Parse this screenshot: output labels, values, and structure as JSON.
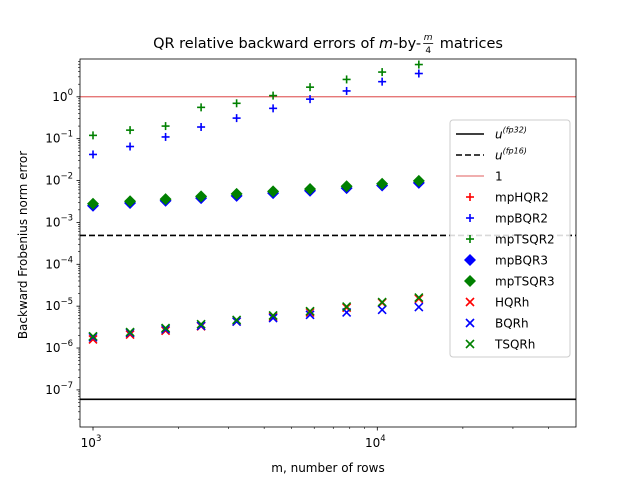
{
  "chart_data": {
    "type": "scatter",
    "title": {
      "prefix": "QR relative backward errors of ",
      "var_m": "m",
      "dash": "-by-",
      "frac_num": "m",
      "frac_den": "4",
      "suffix": " matrices"
    },
    "xlabel": "m, number of rows",
    "ylabel": "Backward Frobenius norm error",
    "xscale": "log",
    "yscale": "log",
    "xlim": [
      900,
      50000
    ],
    "ylim": [
      1.3e-08,
      8
    ],
    "xticks": [
      {
        "value": 1000,
        "base": "10",
        "exp": "3"
      },
      {
        "value": 10000,
        "base": "10",
        "exp": "4"
      }
    ],
    "yticks": [
      {
        "value": 1e-07,
        "base": "10",
        "exp": "−7"
      },
      {
        "value": 1e-06,
        "base": "10",
        "exp": "−6"
      },
      {
        "value": 1e-05,
        "base": "10",
        "exp": "−5"
      },
      {
        "value": 0.0001,
        "base": "10",
        "exp": "−4"
      },
      {
        "value": 0.001,
        "base": "10",
        "exp": "−3"
      },
      {
        "value": 0.01,
        "base": "10",
        "exp": "−2"
      },
      {
        "value": 0.1,
        "base": "10",
        "exp": "−1"
      },
      {
        "value": 1,
        "base": "10",
        "exp": "0"
      }
    ],
    "grid": false,
    "legend_position": "right",
    "x": [
      1000,
      1350,
      1800,
      2400,
      3200,
      4300,
      5800,
      7800,
      10400,
      14000
    ],
    "hlines": [
      {
        "name": "u(fp32)",
        "label_base": "u",
        "label_sup": "(fp32)",
        "value": 5.96e-08,
        "color": "#000000",
        "style": "solid"
      },
      {
        "name": "u(fp16)",
        "label_base": "u",
        "label_sup": "(fp16)",
        "value": 0.000488,
        "color": "#000000",
        "style": "dashed"
      },
      {
        "name": "1",
        "label_base": "1",
        "label_sup": "",
        "value": 1,
        "color": "#d62728",
        "style": "thin"
      }
    ],
    "series": [
      {
        "name": "mpHQR2",
        "marker": "plus",
        "color": "#ff0000",
        "values": []
      },
      {
        "name": "mpBQR2",
        "marker": "plus",
        "color": "#0000ff",
        "values": [
          0.042,
          0.065,
          0.11,
          0.19,
          0.31,
          0.53,
          0.88,
          1.38,
          2.3,
          3.6
        ]
      },
      {
        "name": "mpTSQR2",
        "marker": "plus",
        "color": "#008000",
        "values": [
          0.12,
          0.16,
          0.2,
          0.56,
          0.7,
          1.07,
          1.7,
          2.6,
          3.9,
          5.9
        ]
      },
      {
        "name": "mpBQR3",
        "marker": "diamond",
        "color": "#0000ff",
        "values": [
          0.0025,
          0.0029,
          0.0033,
          0.0038,
          0.0043,
          0.005,
          0.0057,
          0.0066,
          0.0076,
          0.0088
        ]
      },
      {
        "name": "mpTSQR3",
        "marker": "diamond",
        "color": "#008000",
        "values": [
          0.0028,
          0.0032,
          0.0036,
          0.0042,
          0.0048,
          0.0055,
          0.0063,
          0.0073,
          0.0084,
          0.0098
        ]
      },
      {
        "name": "HQRh",
        "marker": "x",
        "color": "#ff0000",
        "values": [
          1.6e-06,
          2.1e-06,
          2.6e-06,
          3.3e-06,
          4.3e-06,
          5.6e-06,
          7.1e-06,
          9.2e-06,
          1.2e-05,
          1.5e-05
        ]
      },
      {
        "name": "BQRh",
        "marker": "x",
        "color": "#0000ff",
        "values": [
          1.8e-06,
          2.3e-06,
          2.8e-06,
          3.4e-06,
          4.3e-06,
          5.2e-06,
          6.2e-06,
          7.1e-06,
          8.2e-06,
          9.5e-06
        ]
      },
      {
        "name": "TSQRh",
        "marker": "x",
        "color": "#008000",
        "values": [
          1.9e-06,
          2.4e-06,
          3e-06,
          3.7e-06,
          4.7e-06,
          6e-06,
          7.6e-06,
          9.8e-06,
          1.25e-05,
          1.6e-05
        ]
      }
    ]
  }
}
